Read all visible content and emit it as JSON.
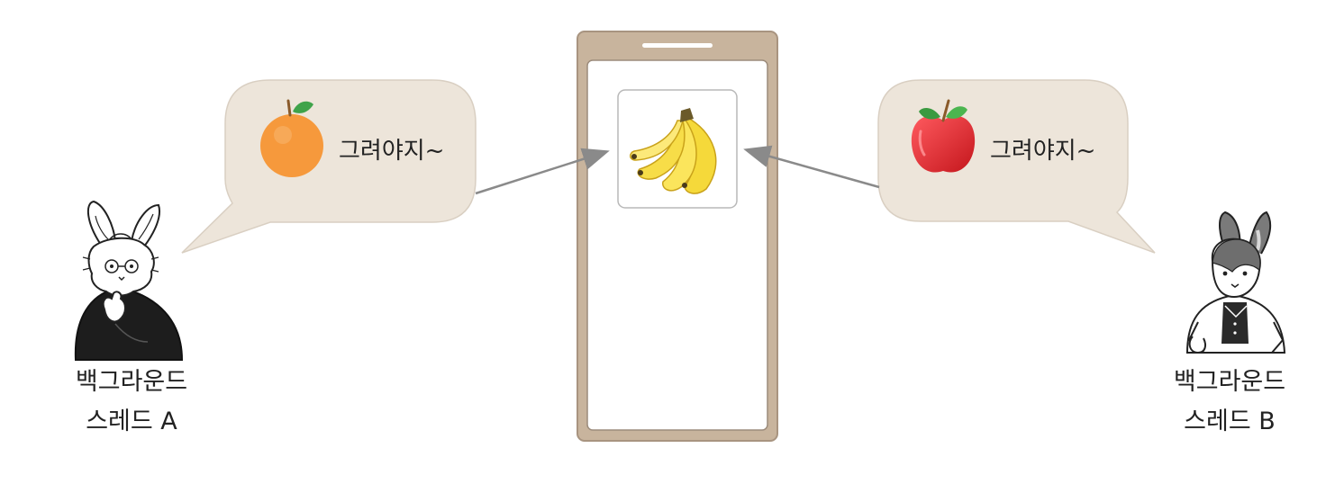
{
  "thread_a": {
    "caption_line1": "백그라운드",
    "caption_line2": "스레드 A",
    "bubble_text": "그려야지~",
    "bubble_icon": "orange-icon"
  },
  "thread_b": {
    "caption_line1": "백그라운드",
    "caption_line2": "스레드 B",
    "bubble_text": "그려야지~",
    "bubble_icon": "apple-icon"
  },
  "phone": {
    "content_icon": "banana-icon"
  },
  "colors": {
    "bubble_fill": "#ede5da",
    "bubble_stroke": "#d9cfc2",
    "phone_frame": "#c8b49d",
    "phone_frame_stroke": "#a89480",
    "arrow": "#8a8a8a",
    "orange": "#f6993c",
    "apple": "#e0282e",
    "banana": "#f5d93a"
  }
}
